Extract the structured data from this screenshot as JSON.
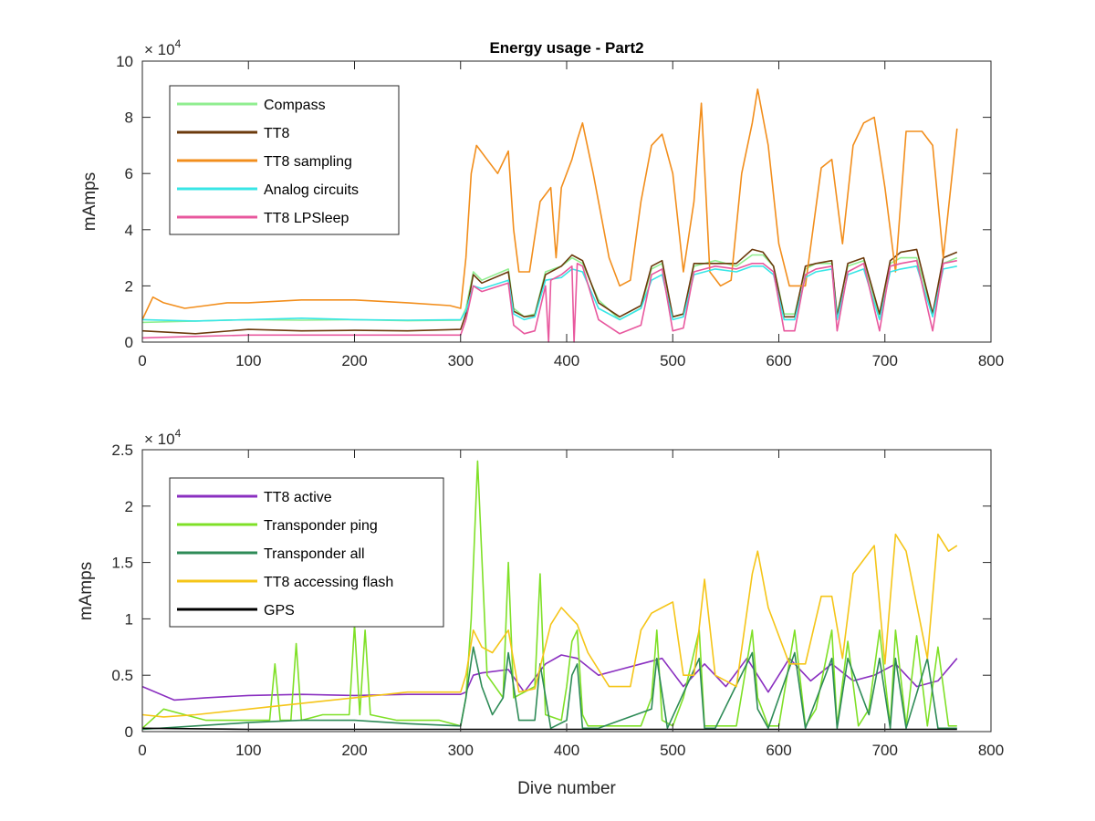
{
  "chart_data": [
    {
      "type": "line",
      "title": "Energy usage - Part2",
      "xlabel": "",
      "ylabel": "mAmps",
      "y_exponent": "×10^4",
      "y_exponent_base": "× 10",
      "y_exponent_power": "4",
      "xlim": [
        0,
        800
      ],
      "ylim": [
        0,
        100000
      ],
      "x_ticks": [
        "0",
        "100",
        "200",
        "300",
        "400",
        "500",
        "600",
        "700",
        "800"
      ],
      "y_ticks": [
        "0",
        "2",
        "4",
        "6",
        "8",
        "10"
      ],
      "legend_position": "top-left",
      "grid": false,
      "series": [
        {
          "name": "Compass",
          "color": "#90ee90",
          "x": [
            0,
            50,
            100,
            150,
            200,
            250,
            300,
            305,
            312,
            320,
            345,
            350,
            360,
            370,
            380,
            395,
            405,
            415,
            430,
            450,
            470,
            480,
            490,
            500,
            510,
            520,
            530,
            540,
            560,
            575,
            585,
            595,
            605,
            615,
            625,
            635,
            650,
            655,
            665,
            680,
            695,
            705,
            715,
            730,
            745,
            755,
            768
          ],
          "y": [
            7000,
            7500,
            8000,
            7800,
            8000,
            7600,
            7800,
            12000,
            25000,
            22000,
            26000,
            12000,
            9000,
            10000,
            25000,
            27000,
            30000,
            28000,
            15000,
            8000,
            12000,
            26000,
            28000,
            9000,
            10000,
            27000,
            28000,
            29000,
            27000,
            31000,
            31000,
            27000,
            10000,
            10000,
            26000,
            28000,
            28000,
            10000,
            27000,
            29000,
            9000,
            28000,
            30000,
            30000,
            10000,
            28000,
            30000
          ]
        },
        {
          "name": "TT8",
          "color": "#6b3a0c",
          "x": [
            0,
            50,
            100,
            150,
            200,
            250,
            300,
            305,
            312,
            320,
            345,
            350,
            360,
            370,
            380,
            395,
            405,
            415,
            430,
            450,
            470,
            480,
            490,
            500,
            510,
            520,
            530,
            540,
            560,
            575,
            585,
            595,
            605,
            615,
            625,
            635,
            650,
            655,
            665,
            680,
            695,
            705,
            715,
            730,
            745,
            755,
            768
          ],
          "y": [
            4000,
            3000,
            4500,
            4000,
            4200,
            4000,
            4500,
            10000,
            24000,
            21000,
            25000,
            11000,
            9000,
            9500,
            24000,
            27000,
            31000,
            29000,
            14000,
            9000,
            13000,
            27000,
            29000,
            9000,
            10000,
            28000,
            28000,
            28000,
            28000,
            33000,
            32000,
            27000,
            9000,
            9000,
            27000,
            28000,
            29000,
            9000,
            28000,
            30000,
            10000,
            29000,
            32000,
            33000,
            10000,
            30000,
            32000
          ]
        },
        {
          "name": "TT8 sampling",
          "color": "#f28e1c",
          "x": [
            0,
            10,
            20,
            40,
            60,
            80,
            100,
            150,
            200,
            250,
            290,
            300,
            305,
            310,
            315,
            325,
            335,
            345,
            350,
            355,
            365,
            375,
            385,
            390,
            395,
            405,
            410,
            415,
            425,
            440,
            450,
            460,
            470,
            480,
            490,
            500,
            510,
            520,
            527,
            535,
            545,
            555,
            565,
            575,
            580,
            590,
            600,
            610,
            625,
            640,
            650,
            660,
            670,
            680,
            690,
            700,
            710,
            720,
            735,
            745,
            755,
            768
          ],
          "y": [
            8000,
            16000,
            14000,
            12000,
            13000,
            14000,
            14000,
            15000,
            15000,
            14000,
            13000,
            12000,
            30000,
            60000,
            70000,
            65000,
            60000,
            68000,
            40000,
            25000,
            25000,
            50000,
            55000,
            30000,
            55000,
            65000,
            72000,
            78000,
            60000,
            30000,
            20000,
            22000,
            50000,
            70000,
            74000,
            60000,
            25000,
            50000,
            85000,
            25000,
            20000,
            22000,
            60000,
            78000,
            90000,
            70000,
            35000,
            20000,
            20000,
            62000,
            65000,
            35000,
            70000,
            78000,
            80000,
            55000,
            25000,
            75000,
            75000,
            70000,
            30000,
            76000
          ]
        },
        {
          "name": "Analog circuits",
          "color": "#38e6e6",
          "x": [
            0,
            50,
            100,
            150,
            200,
            250,
            300,
            305,
            312,
            320,
            345,
            350,
            360,
            370,
            380,
            395,
            405,
            415,
            430,
            450,
            470,
            480,
            490,
            500,
            510,
            520,
            530,
            540,
            560,
            575,
            585,
            595,
            605,
            615,
            625,
            635,
            650,
            655,
            665,
            680,
            695,
            705,
            715,
            730,
            745,
            755,
            768
          ],
          "y": [
            8000,
            7500,
            8000,
            8500,
            8000,
            7800,
            8000,
            11000,
            20000,
            19000,
            22000,
            10000,
            8000,
            9000,
            22000,
            23000,
            26000,
            25000,
            12000,
            8000,
            12000,
            22000,
            24000,
            8000,
            9000,
            24000,
            25000,
            26000,
            25000,
            27000,
            27000,
            24000,
            8000,
            8000,
            23000,
            25000,
            26000,
            8000,
            24000,
            26000,
            8000,
            25000,
            26000,
            27000,
            9000,
            26000,
            27000
          ]
        },
        {
          "name": "TT8 LPSleep",
          "color": "#e8589e",
          "x": [
            0,
            50,
            100,
            150,
            200,
            250,
            300,
            305,
            312,
            320,
            345,
            350,
            360,
            370,
            380,
            383,
            385,
            395,
            405,
            407,
            410,
            415,
            430,
            450,
            470,
            480,
            490,
            500,
            510,
            520,
            530,
            540,
            560,
            575,
            585,
            595,
            605,
            615,
            625,
            635,
            650,
            655,
            665,
            680,
            695,
            705,
            715,
            730,
            745,
            755,
            768
          ],
          "y": [
            1500,
            2000,
            2500,
            2500,
            2500,
            2500,
            2500,
            8000,
            20000,
            18000,
            21000,
            6000,
            3000,
            4000,
            20000,
            0,
            22000,
            24000,
            27000,
            0,
            28000,
            27000,
            8000,
            3000,
            6000,
            24000,
            26000,
            4000,
            5000,
            25000,
            26000,
            27000,
            26000,
            28000,
            28000,
            25000,
            4000,
            4000,
            24000,
            26000,
            27000,
            4000,
            25000,
            28000,
            4000,
            27000,
            28000,
            29000,
            4000,
            28000,
            29000
          ]
        }
      ]
    },
    {
      "type": "line",
      "title": "",
      "xlabel": "Dive number",
      "ylabel": "mAmps",
      "y_exponent": "×10^4",
      "y_exponent_base": "× 10",
      "y_exponent_power": "4",
      "xlim": [
        0,
        800
      ],
      "ylim": [
        0,
        25000
      ],
      "x_ticks": [
        "0",
        "100",
        "200",
        "300",
        "400",
        "500",
        "600",
        "700",
        "800"
      ],
      "y_ticks": [
        "0",
        "0.5",
        "1",
        "1.5",
        "2",
        "2.5"
      ],
      "legend_position": "top-left",
      "grid": false,
      "series": [
        {
          "name": "TT8 active",
          "color": "#8a2fc0",
          "x": [
            0,
            30,
            60,
            100,
            150,
            200,
            250,
            300,
            305,
            312,
            320,
            345,
            360,
            380,
            395,
            410,
            430,
            450,
            470,
            490,
            510,
            530,
            550,
            570,
            590,
            610,
            630,
            650,
            670,
            690,
            710,
            730,
            750,
            768
          ],
          "y": [
            4000,
            2800,
            3000,
            3200,
            3300,
            3200,
            3300,
            3300,
            3500,
            5000,
            5200,
            5500,
            3500,
            6000,
            6800,
            6500,
            5000,
            5500,
            6000,
            6500,
            4000,
            6000,
            4000,
            6500,
            3500,
            6500,
            4500,
            6000,
            4500,
            5000,
            6000,
            4000,
            4500,
            6500
          ]
        },
        {
          "name": "Transponder ping",
          "color": "#7fe027",
          "x": [
            0,
            20,
            40,
            60,
            100,
            120,
            125,
            130,
            140,
            145,
            150,
            170,
            195,
            200,
            205,
            210,
            215,
            240,
            280,
            300,
            305,
            310,
            316,
            325,
            340,
            345,
            350,
            370,
            375,
            380,
            395,
            400,
            405,
            410,
            415,
            420,
            440,
            470,
            480,
            485,
            490,
            500,
            510,
            525,
            530,
            540,
            560,
            575,
            580,
            590,
            600,
            615,
            625,
            635,
            650,
            655,
            665,
            675,
            685,
            695,
            705,
            710,
            720,
            730,
            740,
            750,
            760,
            768
          ],
          "y": [
            300,
            2000,
            1500,
            1000,
            1000,
            1000,
            6000,
            1000,
            1000,
            7800,
            1000,
            1500,
            1500,
            9500,
            1500,
            9000,
            1500,
            1000,
            1000,
            500,
            3000,
            10000,
            24000,
            5000,
            3000,
            15000,
            3000,
            4000,
            14000,
            1500,
            1000,
            4000,
            8000,
            9000,
            1500,
            500,
            500,
            500,
            3000,
            9000,
            1000,
            500,
            3000,
            9000,
            500,
            500,
            500,
            9000,
            3000,
            500,
            500,
            9000,
            500,
            2000,
            9000,
            500,
            8000,
            500,
            2000,
            9000,
            500,
            9000,
            500,
            8500,
            500,
            7500,
            500,
            500
          ]
        },
        {
          "name": "Transponder all",
          "color": "#2e8b57",
          "x": [
            0,
            50,
            100,
            150,
            200,
            250,
            300,
            305,
            312,
            320,
            330,
            340,
            345,
            355,
            370,
            375,
            385,
            400,
            405,
            410,
            415,
            430,
            480,
            485,
            495,
            525,
            530,
            540,
            575,
            580,
            590,
            615,
            625,
            650,
            655,
            665,
            685,
            695,
            705,
            710,
            720,
            740,
            750,
            760,
            768
          ],
          "y": [
            200,
            500,
            800,
            1000,
            1000,
            700,
            500,
            3000,
            7500,
            4000,
            1500,
            3000,
            7000,
            1000,
            1000,
            6000,
            300,
            1000,
            5000,
            6000,
            300,
            300,
            2000,
            6500,
            300,
            6500,
            300,
            300,
            7000,
            2000,
            300,
            7000,
            300,
            6500,
            300,
            6500,
            1500,
            6500,
            300,
            6500,
            300,
            6500,
            300,
            300,
            300
          ]
        },
        {
          "name": "TT8 accessing flash",
          "color": "#f5c518",
          "x": [
            0,
            20,
            50,
            100,
            150,
            200,
            250,
            300,
            305,
            312,
            320,
            330,
            345,
            355,
            370,
            385,
            395,
            410,
            420,
            440,
            460,
            470,
            480,
            490,
            500,
            510,
            520,
            530,
            540,
            560,
            575,
            580,
            590,
            610,
            625,
            640,
            650,
            660,
            670,
            690,
            700,
            710,
            720,
            740,
            750,
            760,
            768
          ],
          "y": [
            1500,
            1300,
            1500,
            2000,
            2500,
            3000,
            3500,
            3500,
            5000,
            9000,
            7500,
            7000,
            9000,
            3500,
            3800,
            9500,
            11000,
            9500,
            7000,
            4000,
            4000,
            9000,
            10500,
            11000,
            11500,
            5000,
            5000,
            13500,
            5000,
            4000,
            14000,
            16000,
            11000,
            6000,
            6000,
            12000,
            12000,
            6500,
            14000,
            16500,
            6000,
            17500,
            16000,
            6500,
            17500,
            16000,
            16500
          ]
        },
        {
          "name": "GPS",
          "color": "#000000",
          "x": [
            0,
            100,
            200,
            300,
            400,
            500,
            600,
            700,
            768
          ],
          "y": [
            300,
            200,
            200,
            200,
            200,
            200,
            200,
            200,
            200
          ]
        }
      ]
    }
  ]
}
